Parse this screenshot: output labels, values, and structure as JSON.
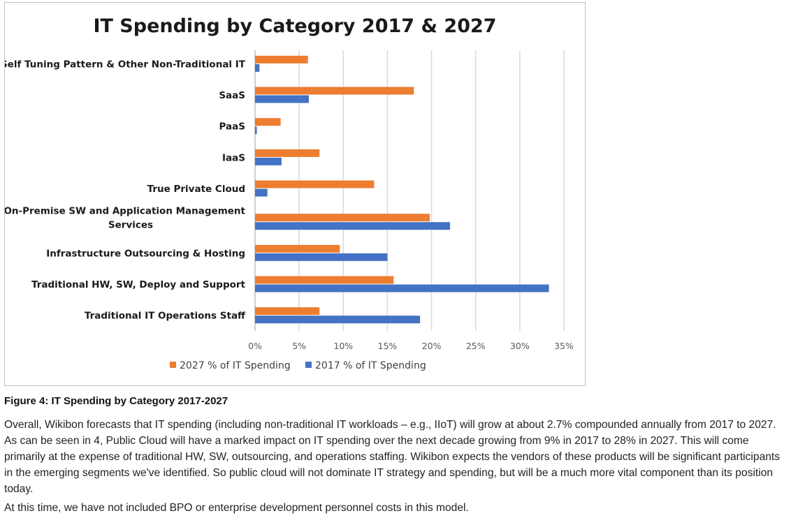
{
  "caption": "Figure 4: IT Spending by Category 2017-2027",
  "paragraphs": [
    "Overall, Wikibon forecasts that IT spending (including non-traditional IT workloads – e.g., IIoT) will grow at about 2.7% compounded annually from 2017 to 2027. As can be seen in 4, Public Cloud will have a marked impact on IT spending over the next decade growing from 9% in 2017 to 28% in 2027. This will come primarily at the expense of traditional HW, SW, outsourcing, and operations staffing. Wikibon expects the vendors of these products will be significant participants in the emerging segments we've identified. So public cloud will not dominate IT strategy and spending, but will be a much more vital component than its position today.",
    "At this time, we have not included BPO or enterprise development personnel costs in this model."
  ],
  "chart_data": {
    "type": "bar",
    "orientation": "horizontal",
    "title": "IT Spending by Category 2017 & 2027",
    "xlabel": "",
    "ylabel": "",
    "categories": [
      [
        "Self Tuning Pattern & Other Non-Traditional IT"
      ],
      [
        "SaaS"
      ],
      [
        "PaaS"
      ],
      [
        "IaaS"
      ],
      [
        "True Private Cloud"
      ],
      [
        "On-Premise SW and Application Management",
        "Services"
      ],
      [
        "Infrastructure Outsourcing & Hosting"
      ],
      [
        "Traditional HW, SW, Deploy and Support"
      ],
      [
        "Traditional IT Operations Staff"
      ]
    ],
    "series": [
      {
        "name": "2027 % of IT Spending",
        "color": "#ed7d31",
        "values": [
          0.06,
          0.18,
          0.029,
          0.073,
          0.135,
          0.198,
          0.096,
          0.157,
          0.073
        ]
      },
      {
        "name": "2017 % of IT Spending",
        "color": "#4472c4",
        "values": [
          0.005,
          0.061,
          0.002,
          0.03,
          0.014,
          0.221,
          0.15,
          0.333,
          0.187
        ]
      }
    ],
    "xlim": [
      0,
      0.35
    ],
    "xticks": [
      0,
      0.05,
      0.1,
      0.15,
      0.2,
      0.25,
      0.3,
      0.35
    ],
    "xtick_labels": [
      "0%",
      "5%",
      "10%",
      "15%",
      "20%",
      "25%",
      "30%",
      "35%"
    ],
    "grid": "vertical",
    "legend_position": "bottom"
  }
}
